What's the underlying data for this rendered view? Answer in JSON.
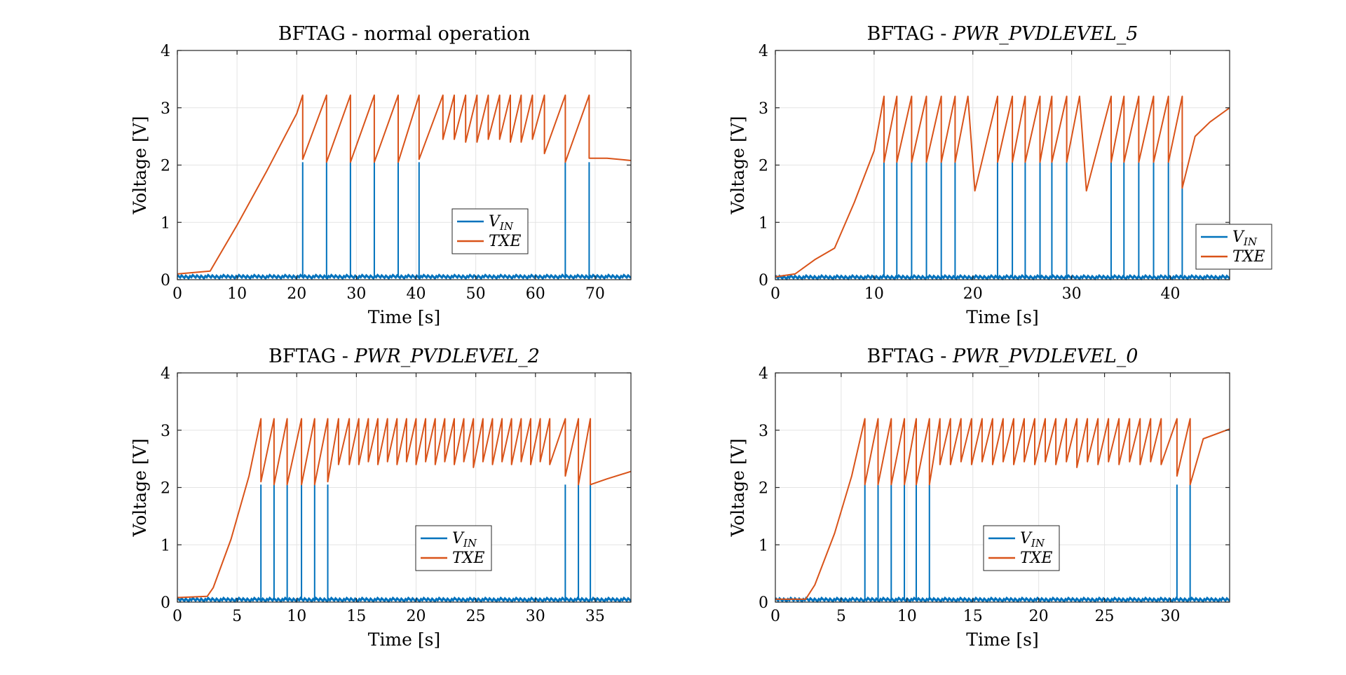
{
  "colors": {
    "vin": "#0072BD",
    "txe": "#D95319"
  },
  "chart_data": [
    {
      "type": "line",
      "title_prefix": "BFTAG - ",
      "title_emph": "normal operation",
      "title_emph_italic": false,
      "xlabel": "Time [s]",
      "ylabel": "Voltage [V]",
      "xlim": [
        0,
        76
      ],
      "ylim": [
        0,
        4
      ],
      "xticks": [
        0,
        10,
        20,
        30,
        40,
        50,
        60,
        70
      ],
      "yticks": [
        0,
        1,
        2,
        3,
        4
      ],
      "grid": true,
      "legend_placement": "center-right",
      "series": [
        {
          "name": "V_IN",
          "baseline": 0.05,
          "pulses": [
            {
              "t": 21,
              "v": 2.05
            },
            {
              "t": 25,
              "v": 2.05
            },
            {
              "t": 29,
              "v": 2.05
            },
            {
              "t": 33,
              "v": 2.05
            },
            {
              "t": 37,
              "v": 2.05
            },
            {
              "t": 40.5,
              "v": 2.05
            },
            {
              "t": 65,
              "v": 2.05
            },
            {
              "t": 69,
              "v": 2.05
            }
          ],
          "x": [
            0,
            76
          ],
          "y": [
            0.05,
            0.05
          ]
        },
        {
          "name": "TXE",
          "x": [
            0,
            5.5,
            10,
            15,
            20,
            21,
            21,
            25,
            25,
            29,
            29,
            33,
            33,
            37,
            37,
            40.5,
            40.5,
            44.5,
            44.5,
            46.4,
            46.4,
            48.3,
            48.3,
            50.2,
            50.2,
            52.1,
            52.1,
            54,
            54,
            55.8,
            55.8,
            57.6,
            57.6,
            59.5,
            59.5,
            61.5,
            61.5,
            65,
            65,
            69,
            69,
            72,
            76
          ],
          "y": [
            0.1,
            0.15,
            0.95,
            1.9,
            2.9,
            3.22,
            2.1,
            3.22,
            2.05,
            3.22,
            2.05,
            3.22,
            2.05,
            3.22,
            2.05,
            3.22,
            2.1,
            3.22,
            2.45,
            3.22,
            2.45,
            3.22,
            2.4,
            3.22,
            2.4,
            3.22,
            2.45,
            3.22,
            2.45,
            3.22,
            2.4,
            3.22,
            2.4,
            3.22,
            2.45,
            3.22,
            2.2,
            3.22,
            2.05,
            3.22,
            2.12,
            2.12,
            2.08
          ]
        }
      ]
    },
    {
      "type": "line",
      "title_prefix": "BFTAG - ",
      "title_emph": "PWR_PVDLEVEL_5",
      "title_emph_italic": true,
      "xlabel": "Time [s]",
      "ylabel": "Voltage [V]",
      "xlim": [
        0,
        46
      ],
      "ylim": [
        0,
        4
      ],
      "xticks": [
        0,
        10,
        20,
        30,
        40
      ],
      "yticks": [
        0,
        1,
        2,
        3,
        4
      ],
      "grid": true,
      "legend_placement": "right",
      "series": [
        {
          "name": "V_IN",
          "baseline": 0.04,
          "pulses": [
            {
              "t": 11,
              "v": 2.05
            },
            {
              "t": 12.3,
              "v": 2.05
            },
            {
              "t": 13.8,
              "v": 2.05
            },
            {
              "t": 15.3,
              "v": 2.05
            },
            {
              "t": 16.8,
              "v": 2.05
            },
            {
              "t": 18.2,
              "v": 2.05
            },
            {
              "t": 22.5,
              "v": 2.05
            },
            {
              "t": 24,
              "v": 2.05
            },
            {
              "t": 25.3,
              "v": 2.05
            },
            {
              "t": 26.8,
              "v": 2.05
            },
            {
              "t": 28,
              "v": 2.05
            },
            {
              "t": 29.5,
              "v": 2.05
            },
            {
              "t": 34,
              "v": 2.05
            },
            {
              "t": 35.3,
              "v": 2.05
            },
            {
              "t": 36.8,
              "v": 2.05
            },
            {
              "t": 38.3,
              "v": 2.05
            },
            {
              "t": 39.8,
              "v": 2.05
            },
            {
              "t": 41.2,
              "v": 2.05
            }
          ],
          "x": [
            0,
            46
          ],
          "y": [
            0.04,
            0.04
          ]
        },
        {
          "name": "TXE",
          "x": [
            0,
            2,
            4,
            6,
            8,
            10,
            11,
            11,
            12.3,
            12.3,
            13.8,
            13.8,
            15.3,
            15.3,
            16.8,
            16.8,
            18.2,
            18.2,
            19.5,
            20.2,
            22.5,
            22.5,
            24,
            24,
            25.3,
            25.3,
            26.8,
            26.8,
            28,
            28,
            29.5,
            29.5,
            30.8,
            31.5,
            34,
            34,
            35.3,
            35.3,
            36.8,
            36.8,
            38.3,
            38.3,
            39.8,
            39.8,
            41.2,
            41.2,
            42.5,
            44,
            46
          ],
          "y": [
            0.05,
            0.1,
            0.35,
            0.55,
            1.35,
            2.25,
            3.2,
            2.05,
            3.2,
            2.05,
            3.2,
            2.05,
            3.2,
            2.05,
            3.2,
            2.05,
            3.2,
            2.05,
            3.2,
            1.55,
            3.2,
            2.05,
            3.2,
            2.05,
            3.2,
            2.05,
            3.2,
            2.05,
            3.2,
            2.05,
            3.2,
            2.05,
            3.2,
            1.55,
            3.2,
            2.05,
            3.2,
            2.05,
            3.2,
            2.05,
            3.2,
            2.05,
            3.2,
            2.05,
            3.2,
            1.6,
            2.5,
            2.75,
            3.0
          ]
        }
      ]
    },
    {
      "type": "line",
      "title_prefix": "BFTAG - ",
      "title_emph": "PWR_PVDLEVEL_2",
      "title_emph_italic": true,
      "xlabel": "Time [s]",
      "ylabel": "Voltage [V]",
      "xlim": [
        0,
        38
      ],
      "ylim": [
        0,
        4
      ],
      "xticks": [
        0,
        5,
        10,
        15,
        20,
        25,
        30,
        35
      ],
      "yticks": [
        0,
        1,
        2,
        3,
        4
      ],
      "grid": true,
      "legend_placement": "lower-center",
      "series": [
        {
          "name": "V_IN",
          "baseline": 0.04,
          "pulses": [
            {
              "t": 7,
              "v": 2.05
            },
            {
              "t": 8.1,
              "v": 2.05
            },
            {
              "t": 9.2,
              "v": 2.05
            },
            {
              "t": 10.4,
              "v": 2.05
            },
            {
              "t": 11.5,
              "v": 2.05
            },
            {
              "t": 12.6,
              "v": 2.05
            },
            {
              "t": 32.5,
              "v": 2.05
            },
            {
              "t": 33.6,
              "v": 2.05
            },
            {
              "t": 34.6,
              "v": 2.05
            }
          ],
          "x": [
            0,
            38
          ],
          "y": [
            0.04,
            0.04
          ]
        },
        {
          "name": "TXE",
          "x": [
            0,
            2.5,
            3,
            4.5,
            6,
            7,
            7,
            8.1,
            8.1,
            9.2,
            9.2,
            10.4,
            10.4,
            11.5,
            11.5,
            12.6,
            12.6,
            13.5,
            13.5,
            14.4,
            14.4,
            15.2,
            15.2,
            16,
            16,
            16.8,
            16.8,
            17.6,
            17.6,
            18.4,
            18.4,
            19.2,
            19.2,
            20,
            20,
            20.8,
            20.8,
            21.6,
            21.6,
            22.4,
            22.4,
            23.2,
            23.2,
            24,
            24,
            24.8,
            24.8,
            25.6,
            25.6,
            26.4,
            26.4,
            27.2,
            27.2,
            28,
            28,
            28.8,
            28.8,
            29.6,
            29.6,
            30.4,
            30.4,
            31.2,
            31.2,
            32.5,
            32.5,
            33.6,
            33.6,
            34.6,
            34.6,
            36,
            38
          ],
          "y": [
            0.08,
            0.1,
            0.25,
            1.1,
            2.2,
            3.2,
            2.1,
            3.2,
            2.05,
            3.2,
            2.05,
            3.2,
            2.05,
            3.2,
            2.05,
            3.2,
            2.1,
            3.2,
            2.4,
            3.2,
            2.4,
            3.2,
            2.4,
            3.2,
            2.45,
            3.2,
            2.4,
            3.2,
            2.45,
            3.2,
            2.4,
            3.2,
            2.45,
            3.2,
            2.4,
            3.2,
            2.45,
            3.2,
            2.4,
            3.2,
            2.45,
            3.2,
            2.4,
            3.2,
            2.45,
            3.2,
            2.35,
            3.2,
            2.45,
            3.2,
            2.4,
            3.2,
            2.45,
            3.2,
            2.4,
            3.2,
            2.45,
            3.2,
            2.4,
            3.2,
            2.45,
            3.2,
            2.4,
            3.2,
            2.2,
            3.2,
            2.05,
            3.2,
            2.05,
            2.15,
            2.28
          ]
        }
      ]
    },
    {
      "type": "line",
      "title_prefix": "BFTAG - ",
      "title_emph": "PWR_PVDLEVEL_0",
      "title_emph_italic": true,
      "xlabel": "Time [s]",
      "ylabel": "Voltage [V]",
      "xlim": [
        0,
        34.5
      ],
      "ylim": [
        0,
        4
      ],
      "xticks": [
        0,
        5,
        10,
        15,
        20,
        25,
        30
      ],
      "yticks": [
        0,
        1,
        2,
        3,
        4
      ],
      "grid": true,
      "legend_placement": "lower-center",
      "series": [
        {
          "name": "V_IN",
          "baseline": 0.04,
          "pulses": [
            {
              "t": 6.8,
              "v": 2.05
            },
            {
              "t": 7.8,
              "v": 2.05
            },
            {
              "t": 8.8,
              "v": 2.05
            },
            {
              "t": 9.8,
              "v": 2.05
            },
            {
              "t": 10.7,
              "v": 2.05
            },
            {
              "t": 11.7,
              "v": 2.05
            },
            {
              "t": 30.5,
              "v": 2.05
            },
            {
              "t": 31.5,
              "v": 2.05
            }
          ],
          "x": [
            0,
            34.5
          ],
          "y": [
            0.04,
            0.04
          ]
        },
        {
          "name": "TXE",
          "x": [
            0,
            2.3,
            3,
            4.5,
            5.8,
            6.8,
            6.8,
            7.8,
            7.8,
            8.8,
            8.8,
            9.8,
            9.8,
            10.7,
            10.7,
            11.7,
            11.7,
            12.5,
            12.5,
            13.3,
            13.3,
            14.1,
            14.1,
            14.9,
            14.9,
            15.7,
            15.7,
            16.5,
            16.5,
            17.3,
            17.3,
            18.1,
            18.1,
            18.9,
            18.9,
            19.7,
            19.7,
            20.5,
            20.5,
            21.3,
            21.3,
            22.1,
            22.1,
            22.9,
            22.9,
            23.7,
            23.7,
            24.5,
            24.5,
            25.3,
            25.3,
            26.1,
            26.1,
            26.9,
            26.9,
            27.7,
            27.7,
            28.5,
            28.5,
            29.3,
            29.3,
            30.5,
            30.5,
            31.5,
            31.5,
            32.5,
            34.5
          ],
          "y": [
            0.05,
            0.05,
            0.3,
            1.2,
            2.2,
            3.2,
            2.05,
            3.2,
            2.05,
            3.2,
            2.05,
            3.2,
            2.05,
            3.2,
            2.05,
            3.2,
            2.05,
            3.2,
            2.4,
            3.2,
            2.4,
            3.2,
            2.45,
            3.2,
            2.4,
            3.2,
            2.45,
            3.2,
            2.4,
            3.2,
            2.45,
            3.2,
            2.4,
            3.2,
            2.45,
            3.2,
            2.4,
            3.2,
            2.45,
            3.2,
            2.4,
            3.2,
            2.45,
            3.2,
            2.35,
            3.2,
            2.45,
            3.2,
            2.4,
            3.2,
            2.45,
            3.2,
            2.4,
            3.2,
            2.45,
            3.2,
            2.4,
            3.2,
            2.45,
            3.2,
            2.4,
            3.2,
            2.2,
            3.2,
            2.05,
            2.85,
            3.02
          ]
        }
      ]
    }
  ]
}
